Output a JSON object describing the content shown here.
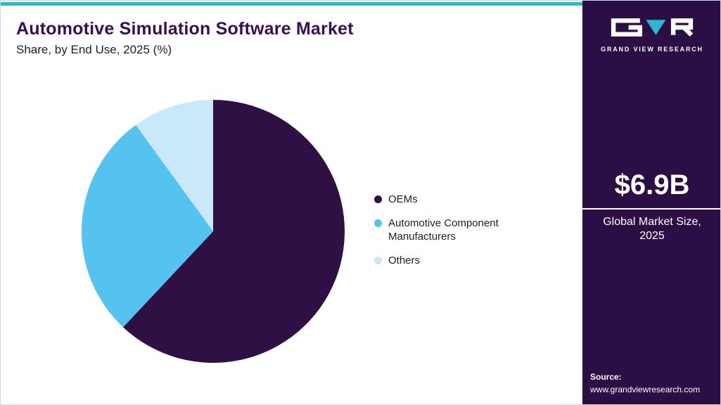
{
  "header": {
    "title": "Automotive Simulation Software Market",
    "subtitle": "Share, by End Use, 2025 (%)"
  },
  "chart_data": {
    "type": "pie",
    "title": "Automotive Simulation Software Market Share, by End Use, 2025 (%)",
    "categories": [
      "OEMs",
      "Automotive Component Manufacturers",
      "Others"
    ],
    "values": [
      62,
      28,
      10
    ],
    "unit": "%",
    "colors": [
      "#2E1045",
      "#55C3F0",
      "#C9E9FB"
    ],
    "start_angle_deg": 0,
    "direction": "clockwise",
    "legend_position": "right",
    "data_labels_shown": false
  },
  "sidebar": {
    "logo_text": "GRAND VIEW RESEARCH",
    "stat_value": "$6.9B",
    "stat_label": "Global Market Size, 2025",
    "source_label": "Source:",
    "source_url": "www.grandviewresearch.com",
    "background_color": "#2B0E44"
  },
  "theme": {
    "top_accent_color": "#2BB9CF",
    "title_color": "#3A0D56",
    "logo_accent_color": "#2BB9CF"
  }
}
